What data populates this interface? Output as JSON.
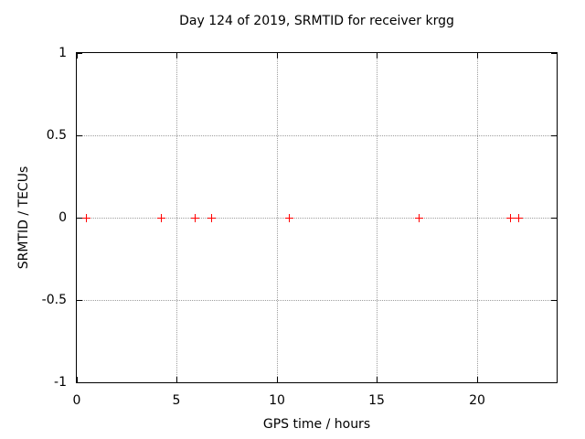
{
  "chart_data": {
    "type": "scatter",
    "title": "Day 124 of 2019, SRMTID for receiver krgg",
    "xlabel": "GPS time / hours",
    "ylabel": "SRMTID / TECUs",
    "xlim": [
      0,
      24
    ],
    "ylim": [
      -1,
      1
    ],
    "grid": true,
    "legend": "none",
    "x_ticks": [
      {
        "label": "0",
        "value": 0
      },
      {
        "label": "5",
        "value": 5
      },
      {
        "label": "10",
        "value": 10
      },
      {
        "label": "15",
        "value": 15
      },
      {
        "label": "20",
        "value": 20
      }
    ],
    "y_ticks": [
      {
        "label": "1",
        "value": 1
      },
      {
        "label": "0.5",
        "value": 0.5
      },
      {
        "label": "0",
        "value": 0
      },
      {
        "label": "-0.5",
        "value": -0.5
      },
      {
        "label": "-1",
        "value": -1
      }
    ],
    "series": [
      {
        "name": "SRMTID",
        "marker": "plus",
        "color": "#ff0000",
        "x": [
          0.45,
          4.2,
          5.9,
          6.7,
          10.6,
          17.1,
          21.65,
          22.1
        ],
        "y": [
          0,
          0,
          0,
          0,
          0,
          0,
          0,
          0
        ]
      }
    ]
  },
  "colors": {
    "background": "#ffffff",
    "axis": "#000000",
    "text": "#000000",
    "grid": "#9e9e9e",
    "marker": "#ff0000"
  }
}
